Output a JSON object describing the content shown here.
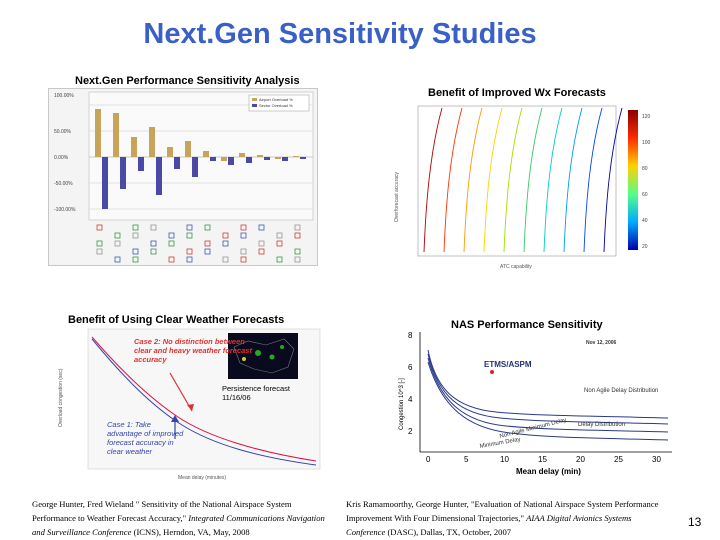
{
  "slide": {
    "title": "Next.Gen Sensitivity Studies",
    "page_number": "13"
  },
  "panels": {
    "performance": {
      "title": "Next.Gen Performance Sensitivity Analysis",
      "legend": [
        "Airport Overload %",
        "Sector Overload %"
      ],
      "y_ticks": [
        "100.00%",
        "50.00%",
        "0.00%",
        "-50.00%",
        "-100.00%"
      ],
      "bar_color_airport": "#c8a35a",
      "bar_color_sector": "#4a4aa6"
    },
    "wx": {
      "title": "Benefit of Improved Wx Forecasts",
      "x_label": "ATC capability",
      "y_label": "Overforecast accuracy",
      "colorbar_ticks": [
        "120",
        "100",
        "80",
        "60",
        "40",
        "20"
      ]
    },
    "clear": {
      "title": "Benefit of Using Clear Weather Forecasts",
      "case2": "Case 2: No distinction between clear and heavy weather forecast accuracy",
      "persistence": "Persistence forecast 11/16/06",
      "case1": "Case 1: Take advantage of improved forecast accuracy in clear weather",
      "x_label": "Mean delay (minutes)",
      "y_label": "Overload congestion (sec)"
    },
    "nas": {
      "title": "NAS Performance Sensitivity",
      "date": "Nov 12, 2006",
      "label_etms": "ETMS/ASPM",
      "label_nonagile_dist": "Non Agile Delay Distribution",
      "label_delay_dist": "Delay Distribution",
      "label_nonagile_min": "Non Agile Minimum Delay",
      "label_min": "Minimum Delay",
      "x_label": "Mean delay (min)",
      "y_label": "Congestion 10^3 [-]",
      "x_ticks": [
        "0",
        "5",
        "10",
        "15",
        "20",
        "25",
        "30"
      ],
      "y_ticks": [
        "8",
        "6",
        "4",
        "2"
      ]
    }
  },
  "references": {
    "left": {
      "plain": "George Hunter, Fred Wieland \" Sensitivity of the National Airspace System Performance to Weather Forecast Accuracy,\" ",
      "italic": "Integrated Communications Navigation and Surveillance Conference",
      "tail": " (ICNS), Herndon, VA, May, 2008"
    },
    "right": {
      "plain": "Kris Ramamoorthy, George Hunter, \"Evaluation of National Airspace System Performance Improvement With Four Dimensional Trajectories,\" ",
      "italic": "AIAA Digital Avionics Systems Conference",
      "tail": " (DASC), Dallas, TX, October, 2007"
    }
  }
}
